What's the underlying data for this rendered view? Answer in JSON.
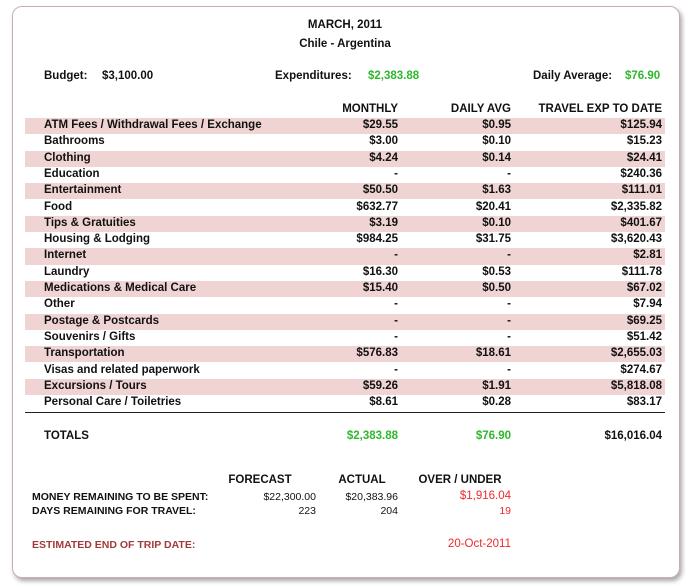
{
  "title": "MARCH, 2011",
  "subtitle": "Chile - Argentina",
  "summary": {
    "budget_label": "Budget:",
    "budget": "$3,100.00",
    "exp_label": "Expenditures:",
    "exp": "$2,383.88",
    "avg_label": "Daily Average:",
    "avg": "$76.90"
  },
  "columns": [
    "MONTHLY",
    "DAILY AVG",
    "TRAVEL EXP TO DATE"
  ],
  "rows": [
    {
      "label": "ATM Fees / Withdrawal Fees / Exchange",
      "monthly": "$29.55",
      "daily": "$0.95",
      "todate": "$125.94"
    },
    {
      "label": "Bathrooms",
      "monthly": "$3.00",
      "daily": "$0.10",
      "todate": "$15.23"
    },
    {
      "label": "Clothing",
      "monthly": "$4.24",
      "daily": "$0.14",
      "todate": "$24.41"
    },
    {
      "label": "Education",
      "monthly": "-",
      "daily": "-",
      "todate": "$240.36"
    },
    {
      "label": "Entertainment",
      "monthly": "$50.50",
      "daily": "$1.63",
      "todate": "$111.01"
    },
    {
      "label": "Food",
      "monthly": "$632.77",
      "daily": "$20.41",
      "todate": "$2,335.82"
    },
    {
      "label": "Tips & Gratuities",
      "monthly": "$3.19",
      "daily": "$0.10",
      "todate": "$401.67"
    },
    {
      "label": "Housing & Lodging",
      "monthly": "$984.25",
      "daily": "$31.75",
      "todate": "$3,620.43"
    },
    {
      "label": "Internet",
      "monthly": "-",
      "daily": "-",
      "todate": "$2.81"
    },
    {
      "label": "Laundry",
      "monthly": "$16.30",
      "daily": "$0.53",
      "todate": "$111.78"
    },
    {
      "label": "Medications & Medical Care",
      "monthly": "$15.40",
      "daily": "$0.50",
      "todate": "$67.02"
    },
    {
      "label": "Other",
      "monthly": "-",
      "daily": "-",
      "todate": "$7.94"
    },
    {
      "label": "Postage & Postcards",
      "monthly": "-",
      "daily": "-",
      "todate": "$69.25"
    },
    {
      "label": "Souvenirs / Gifts",
      "monthly": "-",
      "daily": "-",
      "todate": "$51.42"
    },
    {
      "label": "Transportation",
      "monthly": "$576.83",
      "daily": "$18.61",
      "todate": "$2,655.03"
    },
    {
      "label": "Visas and related paperwork",
      "monthly": "-",
      "daily": "-",
      "todate": "$274.67"
    },
    {
      "label": "Excursions / Tours",
      "monthly": "$59.26",
      "daily": "$1.91",
      "todate": "$5,818.08"
    },
    {
      "label": "Personal Care / Toiletries",
      "monthly": "$8.61",
      "daily": "$0.28",
      "todate": "$83.17"
    }
  ],
  "totals": {
    "label": "TOTALS",
    "monthly": "$2,383.88",
    "daily": "$76.90",
    "todate": "$16,016.04"
  },
  "forecast": {
    "headers": [
      "FORECAST",
      "ACTUAL",
      "OVER / UNDER"
    ],
    "rows": [
      {
        "label": "MONEY REMAINING TO BE SPENT:",
        "forecast": "$22,300.00",
        "actual": "$20,383.96",
        "diff": "$1,916.04"
      },
      {
        "label": "DAYS REMAINING FOR TRAVEL:",
        "forecast": "223",
        "actual": "204",
        "diff": "19"
      }
    ],
    "end_label": "ESTIMATED END OF TRIP DATE:",
    "end_date": "20-Oct-2011"
  },
  "colors": {
    "shade": "#f0d4d4",
    "green": "#2db82d",
    "red": "#ee2a2a"
  }
}
